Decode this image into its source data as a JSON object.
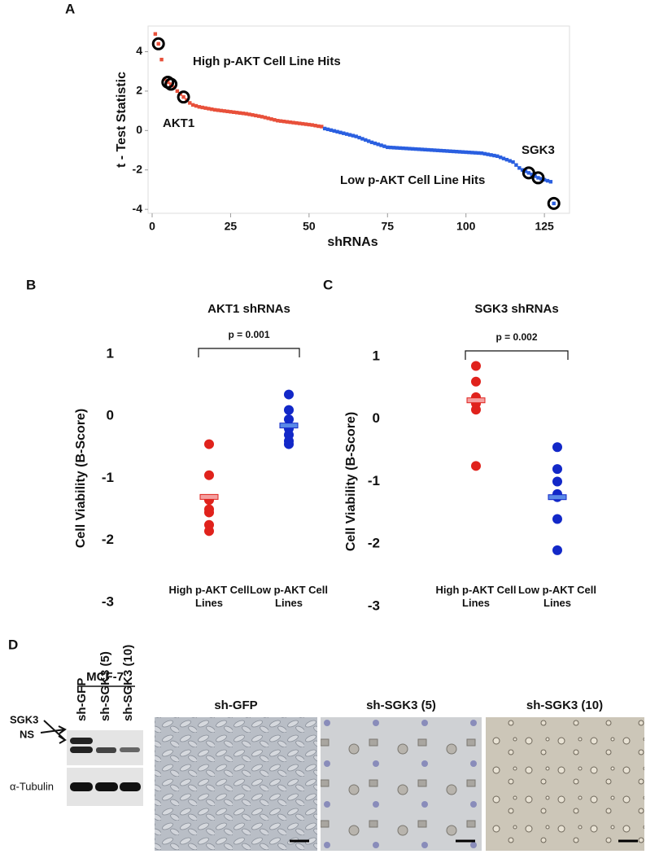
{
  "chart_data": [
    {
      "type": "scatter",
      "panel": "A",
      "ylabel": "t - Test Statistic",
      "xlabel": "shRNAs",
      "xlim": [
        0,
        133
      ],
      "ylim": [
        -4.2,
        5.3
      ],
      "xticks": [
        0,
        25,
        50,
        75,
        100,
        125
      ],
      "yticks": [
        -4,
        -2,
        0,
        2,
        4
      ],
      "annotations": [
        "High p-AKT Cell Line Hits",
        "AKT1",
        "SGK3",
        "Low p-AKT Cell Line Hits"
      ],
      "highlight_x": [
        2,
        5,
        6,
        10,
        120,
        123,
        128
      ],
      "series": [
        {
          "color": "#e8503a",
          "x": [
            1,
            2,
            3,
            4,
            5,
            6,
            7,
            8,
            9,
            10,
            11,
            12,
            13,
            14,
            15,
            16,
            17,
            18,
            19,
            20,
            21,
            22,
            23,
            24,
            25,
            26,
            27,
            28,
            29,
            30,
            31,
            32,
            33,
            34,
            35,
            36,
            37,
            38,
            39,
            40,
            41,
            42,
            43,
            44,
            45,
            46,
            47,
            48,
            49,
            50,
            51,
            52,
            53,
            54
          ],
          "values": [
            4.9,
            4.4,
            3.6,
            2.6,
            2.45,
            2.35,
            2.2,
            2.0,
            1.85,
            1.7,
            1.55,
            1.4,
            1.3,
            1.25,
            1.2,
            1.17,
            1.14,
            1.11,
            1.08,
            1.05,
            1.03,
            1.01,
            0.99,
            0.97,
            0.95,
            0.93,
            0.91,
            0.89,
            0.87,
            0.85,
            0.82,
            0.79,
            0.76,
            0.73,
            0.7,
            0.66,
            0.62,
            0.58,
            0.54,
            0.5,
            0.48,
            0.46,
            0.44,
            0.42,
            0.4,
            0.38,
            0.36,
            0.34,
            0.32,
            0.3,
            0.28,
            0.25,
            0.22,
            0.2
          ]
        },
        {
          "color": "#2a5fe0",
          "x": [
            55,
            56,
            57,
            58,
            59,
            60,
            61,
            62,
            63,
            64,
            65,
            66,
            67,
            68,
            69,
            70,
            71,
            72,
            73,
            74,
            75,
            76,
            77,
            78,
            79,
            80,
            81,
            82,
            83,
            84,
            85,
            86,
            87,
            88,
            89,
            90,
            91,
            92,
            93,
            94,
            95,
            96,
            97,
            98,
            99,
            100,
            101,
            102,
            103,
            104,
            105,
            106,
            107,
            108,
            109,
            110,
            111,
            112,
            113,
            114,
            115,
            116,
            117,
            118,
            119,
            120,
            121,
            122,
            123,
            124,
            125,
            126,
            127,
            128
          ],
          "values": [
            0.1,
            0.06,
            0.02,
            -0.02,
            -0.06,
            -0.1,
            -0.14,
            -0.18,
            -0.22,
            -0.26,
            -0.3,
            -0.36,
            -0.42,
            -0.48,
            -0.54,
            -0.6,
            -0.65,
            -0.7,
            -0.75,
            -0.8,
            -0.85,
            -0.86,
            -0.87,
            -0.88,
            -0.89,
            -0.9,
            -0.91,
            -0.92,
            -0.93,
            -0.94,
            -0.95,
            -0.96,
            -0.97,
            -0.98,
            -0.99,
            -1.0,
            -1.01,
            -1.02,
            -1.03,
            -1.04,
            -1.05,
            -1.06,
            -1.07,
            -1.08,
            -1.09,
            -1.1,
            -1.11,
            -1.12,
            -1.13,
            -1.14,
            -1.15,
            -1.18,
            -1.21,
            -1.24,
            -1.27,
            -1.3,
            -1.36,
            -1.42,
            -1.48,
            -1.54,
            -1.6,
            -1.75,
            -1.9,
            -2.0,
            -2.07,
            -2.15,
            -2.23,
            -2.32,
            -2.4,
            -2.45,
            -2.5,
            -2.55,
            -2.6,
            -3.7
          ]
        }
      ]
    },
    {
      "type": "strip",
      "panel": "B",
      "title": "AKT1 shRNAs",
      "ylabel": "Cell Viability (B-Score)",
      "p_label": "p = 0.001",
      "ylim": [
        -3,
        1
      ],
      "yticks": [
        1,
        0,
        -1,
        -2,
        -3
      ],
      "categories": [
        "High p-AKT Cell Lines",
        "Low p-AKT Cell Lines"
      ],
      "series": [
        {
          "color": "#e0221c",
          "mean_color": "#f4a0a0",
          "values": [
            -0.45,
            -0.95,
            -1.35,
            -1.5,
            -1.55,
            -1.75,
            -1.85
          ],
          "mean": -1.3
        },
        {
          "color": "#1228c8",
          "mean_color": "#5a8ae8",
          "values": [
            0.35,
            0.1,
            -0.05,
            -0.2,
            -0.3,
            -0.4,
            -0.45
          ],
          "mean": -0.15
        }
      ]
    },
    {
      "type": "strip",
      "panel": "C",
      "title": "SGK3 shRNAs",
      "ylabel": "Cell Viability (B-Score)",
      "p_label": "p = 0.002",
      "ylim": [
        -3,
        1
      ],
      "yticks": [
        1,
        0,
        -1,
        -2,
        -3
      ],
      "categories": [
        "High p-AKT Cell Lines",
        "Low p-AKT Cell Lines"
      ],
      "series": [
        {
          "color": "#e0221c",
          "mean_color": "#f4a0a0",
          "values": [
            0.85,
            0.6,
            0.35,
            0.25,
            0.15,
            -0.75
          ],
          "mean": 0.3
        },
        {
          "color": "#1228c8",
          "mean_color": "#5a8ae8",
          "values": [
            -0.45,
            -0.8,
            -1.0,
            -1.2,
            -1.25,
            -1.6,
            -2.1
          ],
          "mean": -1.25
        }
      ]
    }
  ],
  "panel_d": {
    "panel": "D",
    "cell_line": "MCF-7",
    "lanes": [
      "sh-GFP",
      "sh-SGK3 (5)",
      "sh-SGK3 (10)"
    ],
    "bands": [
      "SGK3",
      "NS",
      "α-Tubulin"
    ],
    "images": [
      "sh-GFP",
      "sh-SGK3 (5)",
      "sh-SGK3 (10)"
    ]
  }
}
